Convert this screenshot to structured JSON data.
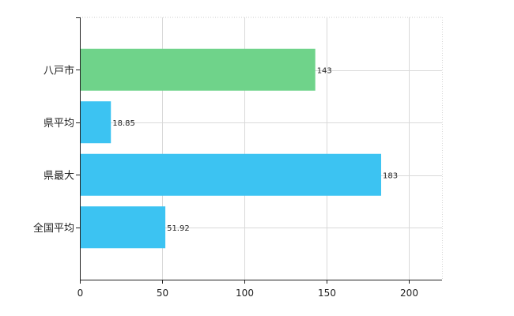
{
  "chart_data": {
    "type": "bar",
    "orientation": "horizontal",
    "title": "",
    "xlabel": "",
    "ylabel": "",
    "categories": [
      "八戸市",
      "県平均",
      "県最大",
      "全国平均"
    ],
    "values": [
      143,
      18.85,
      183,
      51.92
    ],
    "value_labels": [
      "143",
      "18.85",
      "183",
      "51.92"
    ],
    "bar_colors": [
      "#6fd38a",
      "#3cc3f2",
      "#3cc3f2",
      "#3cc3f2"
    ],
    "xlim": [
      0,
      220
    ],
    "x_ticks": [
      0,
      50,
      100,
      150,
      200
    ],
    "x_tick_labels": [
      "0",
      "50",
      "100",
      "150",
      "200"
    ],
    "grid": true,
    "legend": "none"
  }
}
